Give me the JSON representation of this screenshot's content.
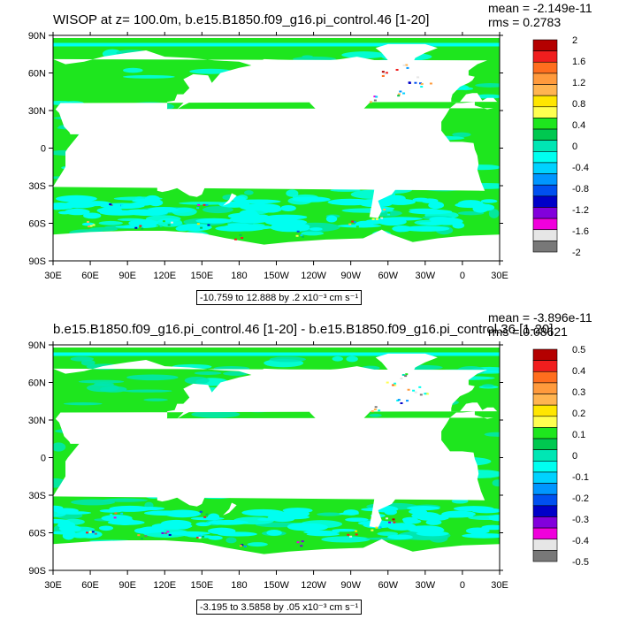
{
  "chart_data": [
    {
      "type": "heatmap",
      "title": "WISOP at z= 100.0m, b.e15.B1850.f09_g16.pi_control.46 [1-20]",
      "stats": {
        "mean": "mean = -2.149e-11",
        "rms": "rms = 0.2783"
      },
      "x_tick_labels": [
        "30E",
        "60E",
        "90E",
        "120E",
        "150E",
        "180",
        "150W",
        "120W",
        "90W",
        "60W",
        "30W",
        "0",
        "30E"
      ],
      "y_tick_labels": [
        "90N",
        "60N",
        "30N",
        "0",
        "30S",
        "60S",
        "90S"
      ],
      "xlim": [
        30,
        390
      ],
      "ylim": [
        -90,
        90
      ],
      "range_label": "-10.759 to 12.888 by .2 x10⁻³ cm s⁻¹",
      "colorbar": {
        "labels": [
          "2",
          "1.6",
          "1.2",
          "0.8",
          "0.4",
          "0",
          "-0.4",
          "-0.8",
          "-1.2",
          "-1.6",
          "-2"
        ],
        "colors": [
          "#B40000",
          "#F01E1E",
          "#FF6E1E",
          "#FF9A3C",
          "#FFB450",
          "#FFE600",
          "#FFFF50",
          "#1EE61E",
          "#00C850",
          "#00E6B4",
          "#00FFF0",
          "#00D2FF",
          "#0096FF",
          "#0050F0",
          "#0000C8",
          "#8200DC",
          "#F000DC",
          "#E6E6E6",
          "#787878"
        ]
      },
      "ocean_color": "#1EE61E"
    },
    {
      "type": "heatmap",
      "title": "b.e15.B1850.f09_g16.pi_control.46 [1-20] - b.e15.B1850.f09_g16.pi_control.36 [1-20]",
      "stats": {
        "mean": "mean = -3.896e-11",
        "rms": "rms = 0.08621"
      },
      "x_tick_labels": [
        "30E",
        "60E",
        "90E",
        "120E",
        "150E",
        "180",
        "150W",
        "120W",
        "90W",
        "60W",
        "30W",
        "0",
        "30E"
      ],
      "y_tick_labels": [
        "90N",
        "60N",
        "30N",
        "0",
        "30S",
        "60S",
        "90S"
      ],
      "xlim": [
        30,
        390
      ],
      "ylim": [
        -90,
        90
      ],
      "range_label": "-3.195 to 3.5858 by .05 x10⁻³ cm s⁻¹",
      "colorbar": {
        "labels": [
          "0.5",
          "0.4",
          "0.3",
          "0.2",
          "0.1",
          "0",
          "-0.1",
          "-0.2",
          "-0.3",
          "-0.4",
          "-0.5"
        ],
        "colors": [
          "#B40000",
          "#F01E1E",
          "#FF6E1E",
          "#FF9A3C",
          "#FFB450",
          "#FFE600",
          "#FFFF50",
          "#1EE61E",
          "#00C850",
          "#00E6B4",
          "#00FFF0",
          "#00D2FF",
          "#0096FF",
          "#0050F0",
          "#0000C8",
          "#8200DC",
          "#F000DC",
          "#E6E6E6",
          "#787878"
        ]
      },
      "ocean_color": "#1EE61E"
    }
  ]
}
